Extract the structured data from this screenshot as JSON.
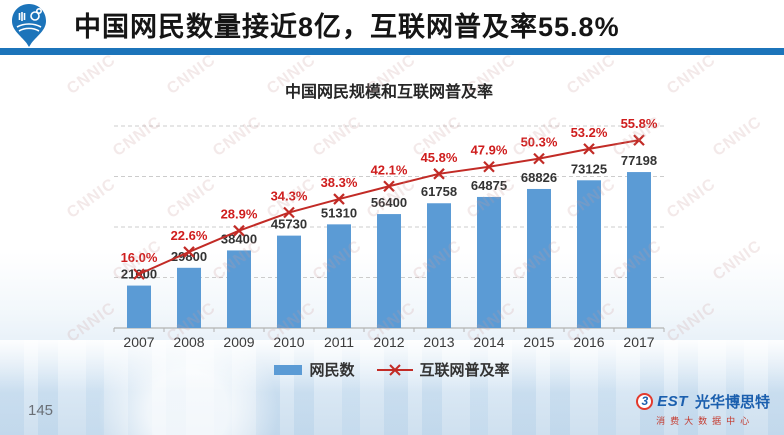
{
  "header": {
    "title": "中国网民数量接近8亿，互联网普及率55.8%",
    "accent_color": "#1c74ba"
  },
  "watermark": {
    "text": "CNNIC"
  },
  "chart_data": {
    "type": "bar",
    "subtype": "bar+line combo",
    "title": "中国网民规模和互联网普及率",
    "categories": [
      "2007",
      "2008",
      "2009",
      "2010",
      "2011",
      "2012",
      "2013",
      "2014",
      "2015",
      "2016",
      "2017"
    ],
    "series": [
      {
        "name": "网民数",
        "type": "bar",
        "values": [
          21000,
          29800,
          38400,
          45730,
          51310,
          56400,
          61758,
          64875,
          68826,
          73125,
          77198
        ],
        "color": "#5b9bd5",
        "axis_max": 100000
      },
      {
        "name": "互联网普及率",
        "type": "line",
        "marker": "x",
        "values": [
          16.0,
          22.6,
          28.9,
          34.3,
          38.3,
          42.1,
          45.8,
          47.9,
          50.3,
          53.2,
          55.8
        ],
        "labels": [
          "16.0%",
          "22.6%",
          "28.9%",
          "34.3%",
          "38.3%",
          "42.1%",
          "45.8%",
          "47.9%",
          "50.3%",
          "53.2%",
          "55.8%"
        ],
        "color": "#c22b26",
        "label_color": "#cf1d1d",
        "axis_max": 60
      }
    ],
    "grid": "dashed horizontal, no visible y-axis labels",
    "legend_position": "bottom"
  },
  "footer": {
    "page_number": "145",
    "brand": {
      "circle_char": "3",
      "latin": "EST",
      "cn": "光华博思特",
      "subtitle": "消费大数据中心"
    }
  }
}
